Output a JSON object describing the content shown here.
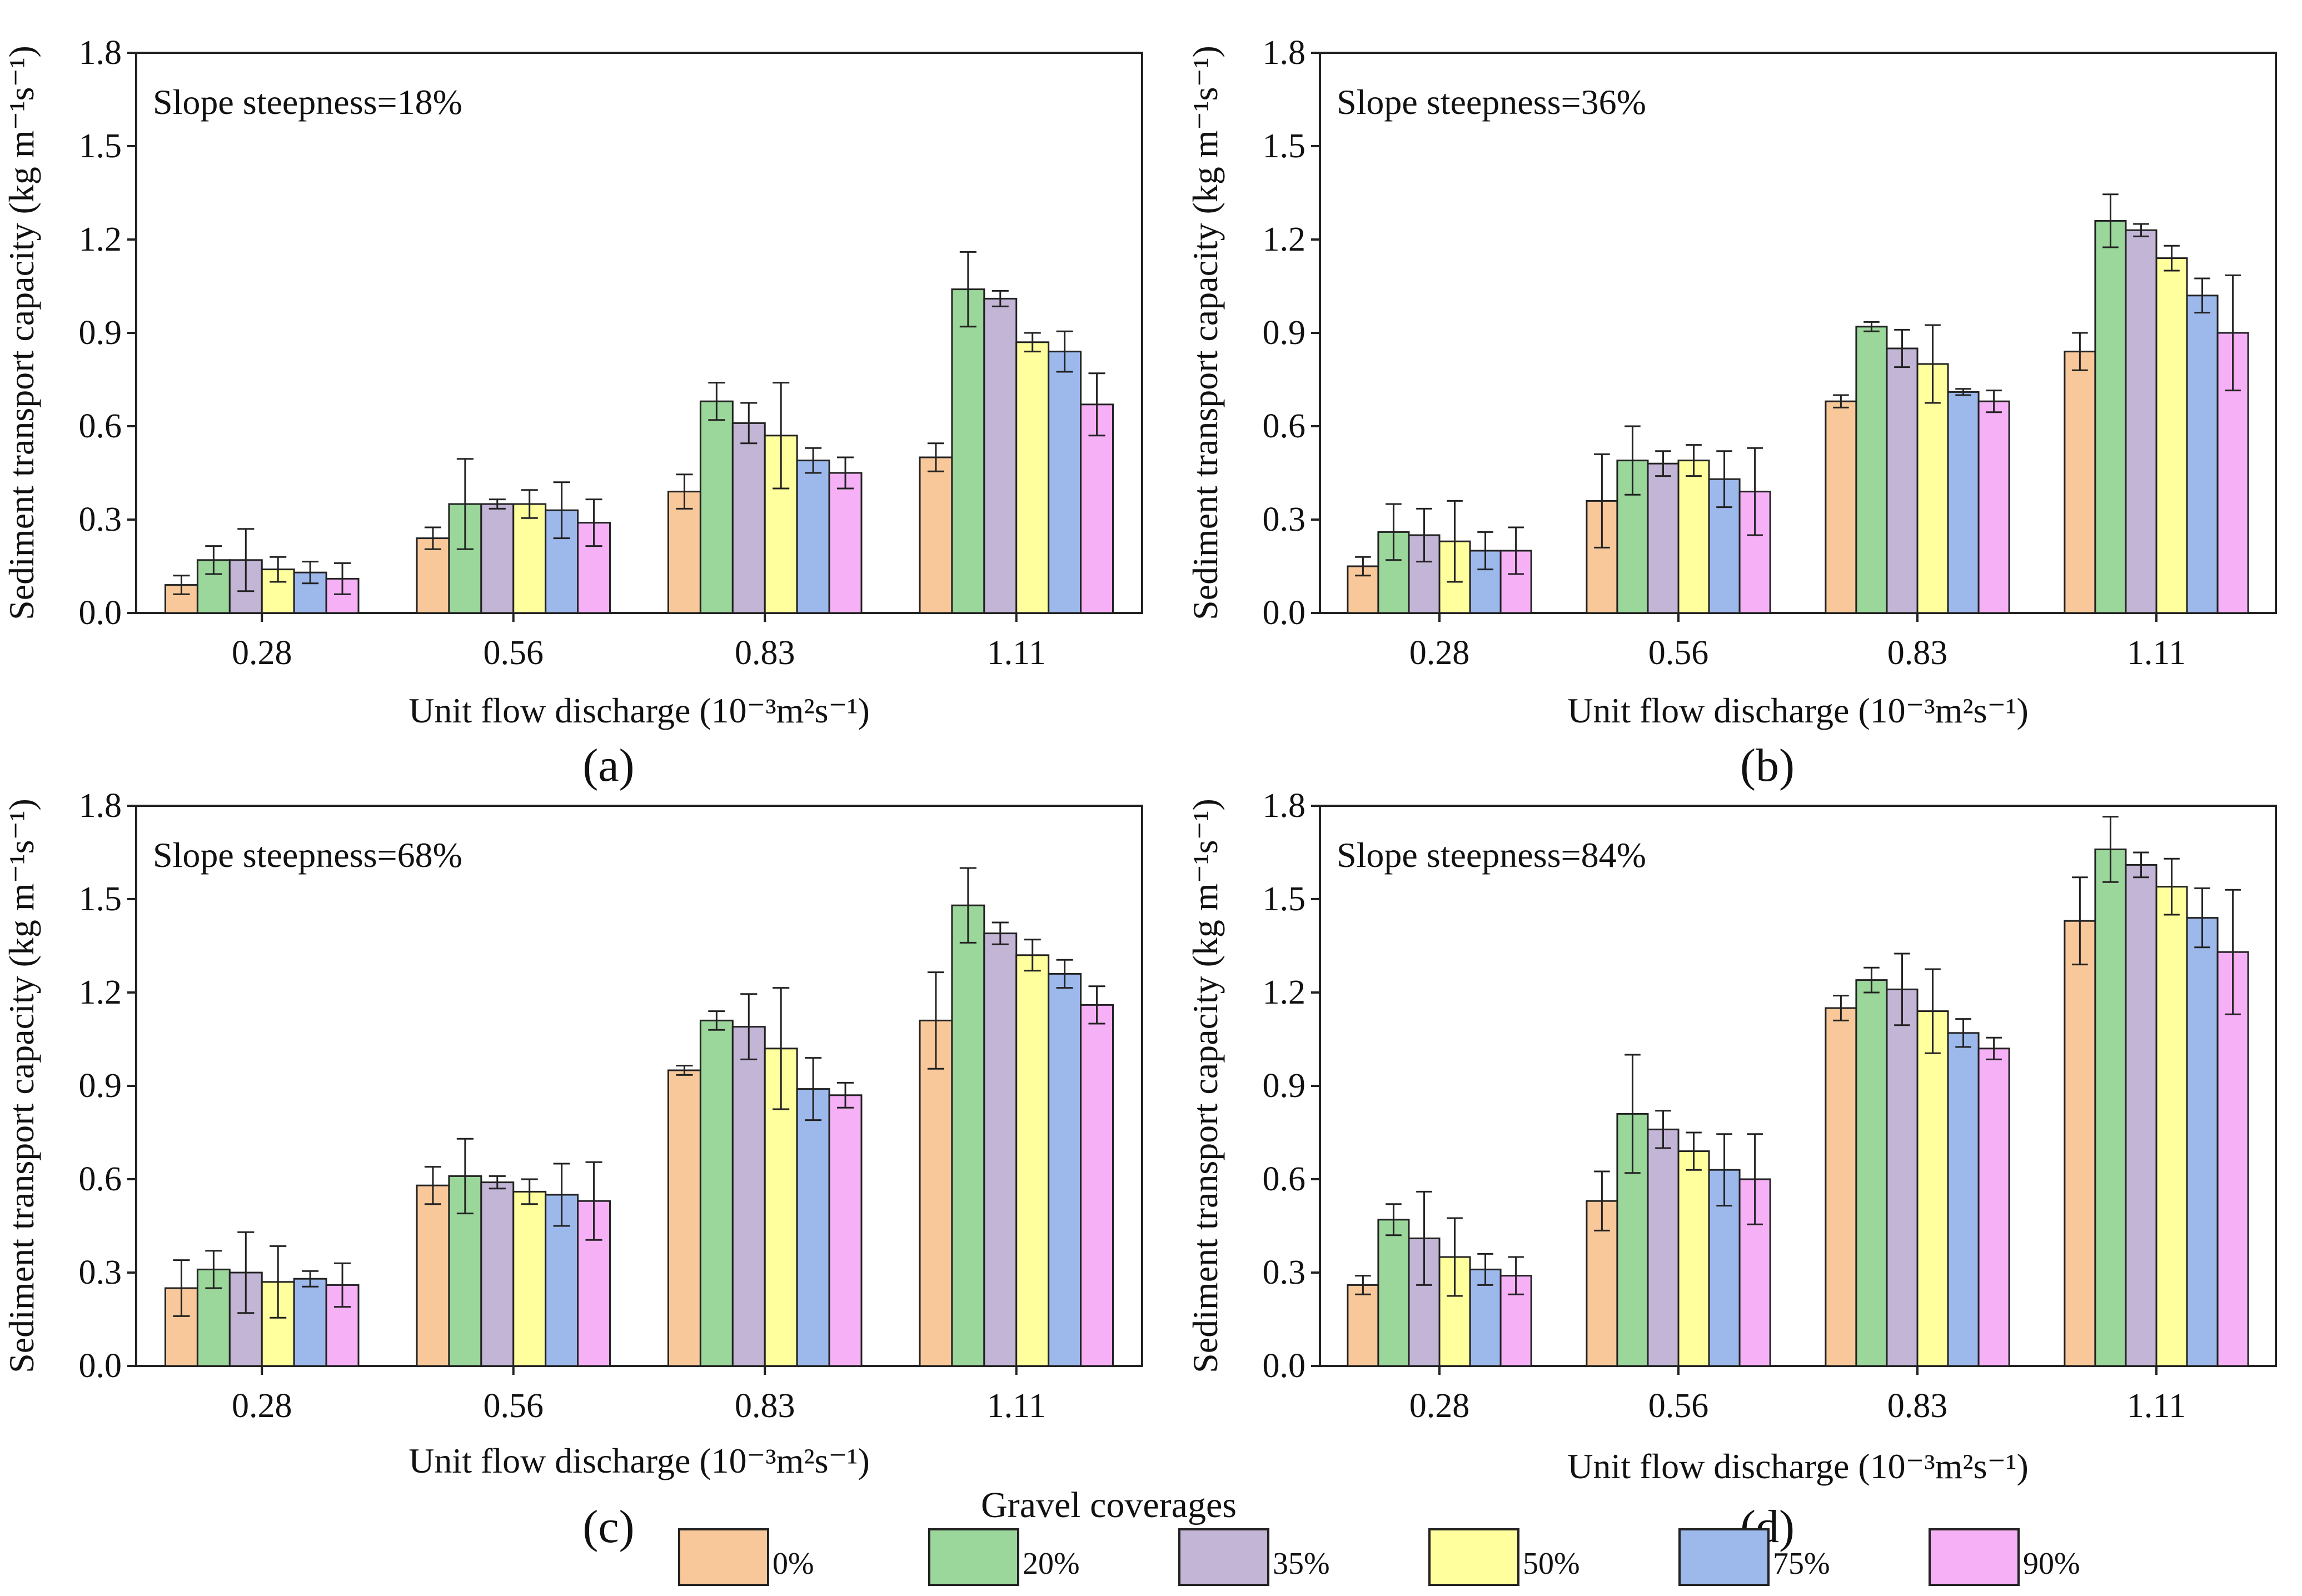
{
  "figure": {
    "legend": {
      "title": "Gravel coverages",
      "items": [
        {
          "label": "0%",
          "color": "#F8C89A"
        },
        {
          "label": "20%",
          "color": "#9BD79B"
        },
        {
          "label": "35%",
          "color": "#C3B5D6"
        },
        {
          "label": "50%",
          "color": "#FFFF9E"
        },
        {
          "label": "75%",
          "color": "#9DB9EC"
        },
        {
          "label": "90%",
          "color": "#F6B1F6"
        }
      ]
    }
  },
  "chart_data": [
    {
      "type": "bar",
      "panel_label": "(a)",
      "annotation": "Slope steepness=18%",
      "ylabel": "Sediment transport capacity (kg m⁻¹s⁻¹)",
      "xlabel": "Unit flow discharge (10⁻³m²s⁻¹)",
      "ylim": [
        0,
        1.8
      ],
      "yticks": [
        "0.0",
        "0.3",
        "0.6",
        "0.9",
        "1.2",
        "1.5",
        "1.8"
      ],
      "categories": [
        "0.28",
        "0.56",
        "0.83",
        "1.11"
      ],
      "series": [
        {
          "name": "0%",
          "values": [
            0.09,
            0.24,
            0.39,
            0.5
          ],
          "errors": [
            0.03,
            0.035,
            0.055,
            0.045
          ]
        },
        {
          "name": "20%",
          "values": [
            0.17,
            0.35,
            0.68,
            1.04
          ],
          "errors": [
            0.045,
            0.145,
            0.06,
            0.12
          ]
        },
        {
          "name": "35%",
          "values": [
            0.17,
            0.35,
            0.61,
            1.01
          ],
          "errors": [
            0.1,
            0.015,
            0.065,
            0.025
          ]
        },
        {
          "name": "50%",
          "values": [
            0.14,
            0.35,
            0.57,
            0.87
          ],
          "errors": [
            0.04,
            0.045,
            0.17,
            0.03
          ]
        },
        {
          "name": "75%",
          "values": [
            0.13,
            0.33,
            0.49,
            0.84
          ],
          "errors": [
            0.035,
            0.09,
            0.04,
            0.065
          ]
        },
        {
          "name": "90%",
          "values": [
            0.11,
            0.29,
            0.45,
            0.67
          ],
          "errors": [
            0.05,
            0.075,
            0.05,
            0.1
          ]
        }
      ]
    },
    {
      "type": "bar",
      "panel_label": "(b)",
      "annotation": "Slope steepness=36%",
      "ylabel": "Sediment transport capacity (kg m⁻¹s⁻¹)",
      "xlabel": "Unit flow discharge (10⁻³m²s⁻¹)",
      "ylim": [
        0,
        1.8
      ],
      "yticks": [
        "0.0",
        "0.3",
        "0.6",
        "0.9",
        "1.2",
        "1.5",
        "1.8"
      ],
      "categories": [
        "0.28",
        "0.56",
        "0.83",
        "1.11"
      ],
      "series": [
        {
          "name": "0%",
          "values": [
            0.15,
            0.36,
            0.68,
            0.84
          ],
          "errors": [
            0.03,
            0.15,
            0.02,
            0.06
          ]
        },
        {
          "name": "20%",
          "values": [
            0.26,
            0.49,
            0.92,
            1.26
          ],
          "errors": [
            0.09,
            0.11,
            0.015,
            0.085
          ]
        },
        {
          "name": "35%",
          "values": [
            0.25,
            0.48,
            0.85,
            1.23
          ],
          "errors": [
            0.085,
            0.04,
            0.06,
            0.02
          ]
        },
        {
          "name": "50%",
          "values": [
            0.23,
            0.49,
            0.8,
            1.14
          ],
          "errors": [
            0.13,
            0.05,
            0.125,
            0.04
          ]
        },
        {
          "name": "75%",
          "values": [
            0.2,
            0.43,
            0.71,
            1.02
          ],
          "errors": [
            0.06,
            0.09,
            0.01,
            0.055
          ]
        },
        {
          "name": "90%",
          "values": [
            0.2,
            0.39,
            0.68,
            0.9
          ],
          "errors": [
            0.075,
            0.14,
            0.035,
            0.185
          ]
        }
      ]
    },
    {
      "type": "bar",
      "panel_label": "(c)",
      "annotation": "Slope steepness=68%",
      "ylabel": "Sediment transport capacity (kg m⁻¹s⁻¹)",
      "xlabel": "Unit flow discharge (10⁻³m²s⁻¹)",
      "ylim": [
        0,
        1.8
      ],
      "yticks": [
        "0.0",
        "0.3",
        "0.6",
        "0.9",
        "1.2",
        "1.5",
        "1.8"
      ],
      "categories": [
        "0.28",
        "0.56",
        "0.83",
        "1.11"
      ],
      "series": [
        {
          "name": "0%",
          "values": [
            0.25,
            0.58,
            0.95,
            1.11
          ],
          "errors": [
            0.09,
            0.06,
            0.015,
            0.155
          ]
        },
        {
          "name": "20%",
          "values": [
            0.31,
            0.61,
            1.11,
            1.48
          ],
          "errors": [
            0.06,
            0.12,
            0.03,
            0.12
          ]
        },
        {
          "name": "35%",
          "values": [
            0.3,
            0.59,
            1.09,
            1.39
          ],
          "errors": [
            0.13,
            0.02,
            0.105,
            0.035
          ]
        },
        {
          "name": "50%",
          "values": [
            0.27,
            0.56,
            1.02,
            1.32
          ],
          "errors": [
            0.115,
            0.04,
            0.195,
            0.05
          ]
        },
        {
          "name": "75%",
          "values": [
            0.28,
            0.55,
            0.89,
            1.26
          ],
          "errors": [
            0.025,
            0.1,
            0.1,
            0.045
          ]
        },
        {
          "name": "90%",
          "values": [
            0.26,
            0.53,
            0.87,
            1.16
          ],
          "errors": [
            0.07,
            0.125,
            0.04,
            0.06
          ]
        }
      ]
    },
    {
      "type": "bar",
      "panel_label": "(d)",
      "annotation": "Slope steepness=84%",
      "ylabel": "Sediment transport capacity (kg m⁻¹s⁻¹)",
      "xlabel": "Unit flow discharge (10⁻³m²s⁻¹)",
      "ylim": [
        0,
        1.8
      ],
      "yticks": [
        "0.0",
        "0.3",
        "0.6",
        "0.9",
        "1.2",
        "1.5",
        "1.8"
      ],
      "categories": [
        "0.28",
        "0.56",
        "0.83",
        "1.11"
      ],
      "series": [
        {
          "name": "0%",
          "values": [
            0.26,
            0.53,
            1.15,
            1.43
          ],
          "errors": [
            0.03,
            0.095,
            0.04,
            0.14
          ]
        },
        {
          "name": "20%",
          "values": [
            0.47,
            0.81,
            1.24,
            1.66
          ],
          "errors": [
            0.05,
            0.19,
            0.04,
            0.105
          ]
        },
        {
          "name": "35%",
          "values": [
            0.41,
            0.76,
            1.21,
            1.61
          ],
          "errors": [
            0.15,
            0.06,
            0.115,
            0.04
          ]
        },
        {
          "name": "50%",
          "values": [
            0.35,
            0.69,
            1.14,
            1.54
          ],
          "errors": [
            0.125,
            0.06,
            0.135,
            0.09
          ]
        },
        {
          "name": "75%",
          "values": [
            0.31,
            0.63,
            1.07,
            1.44
          ],
          "errors": [
            0.05,
            0.115,
            0.045,
            0.095
          ]
        },
        {
          "name": "90%",
          "values": [
            0.29,
            0.6,
            1.02,
            1.33
          ],
          "errors": [
            0.06,
            0.145,
            0.035,
            0.2
          ]
        }
      ]
    }
  ]
}
